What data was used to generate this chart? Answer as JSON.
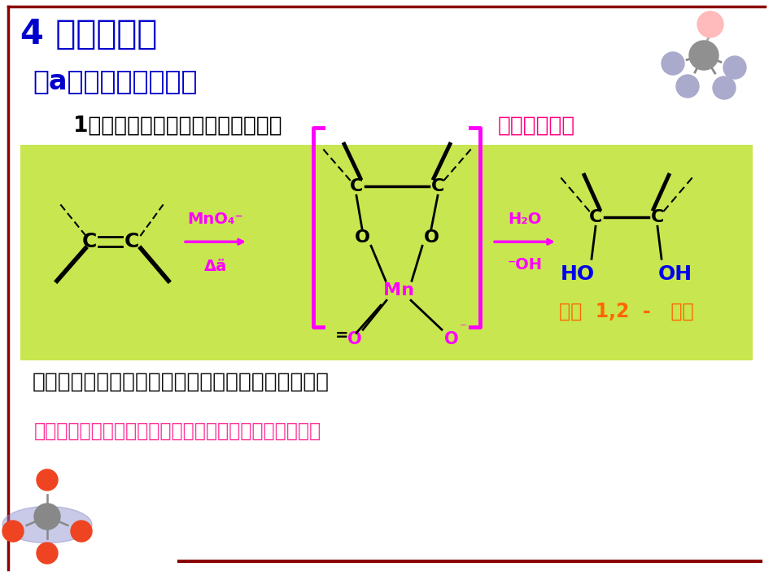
{
  "bg_color": "#ffffff",
  "green_box_color": "#c8e650",
  "title_text": "4 、氧化反应",
  "title_color": "#0000cc",
  "subtitle_text": "（a）高锰酸钾的氧化",
  "subtitle_color": "#0000cc",
  "line1_black": "1）用冷的高锰酸钾稀碱溶液氧化：",
  "line1_red": "得顺式邻二醇",
  "line1_red_color": "#ff0080",
  "bottom_text1": "用于鉴别碳碳不饱和键；收率低，一般不用于合成。",
  "bottom_text1_color": "#111111",
  "bottom_text2": "现象：高锰酸钾的紫色褪去，生成褐色的二氧化锰沉淀。",
  "bottom_text2_color": "#ff3399",
  "border_color": "#8b0000",
  "magenta": "#ff00ff",
  "blue": "#0000ee",
  "orange": "#ff6600"
}
